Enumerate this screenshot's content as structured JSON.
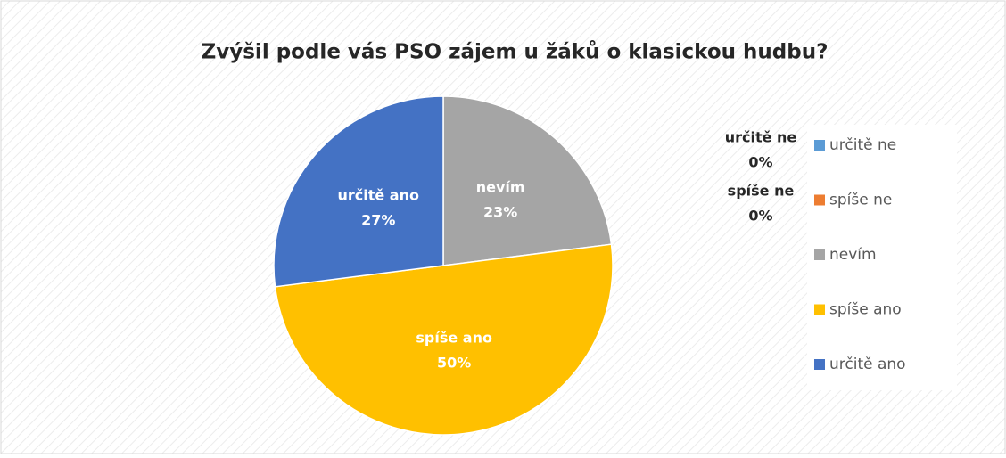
{
  "chart_data": {
    "type": "pie",
    "title": "Zvýšil podle vás PSO zájem u žáků o klasickou hudbu?",
    "categories": [
      "určitě ne",
      "spíše ne",
      "nevím",
      "spíše ano",
      "určitě ano"
    ],
    "values": [
      0,
      0,
      23,
      50,
      27
    ],
    "value_labels": [
      "0%",
      "0%",
      "23%",
      "50%",
      "27%"
    ],
    "colors": [
      "#5b9bd5",
      "#ed7d31",
      "#a5a5a5",
      "#ffc000",
      "#4472c4"
    ],
    "legend": "right"
  }
}
